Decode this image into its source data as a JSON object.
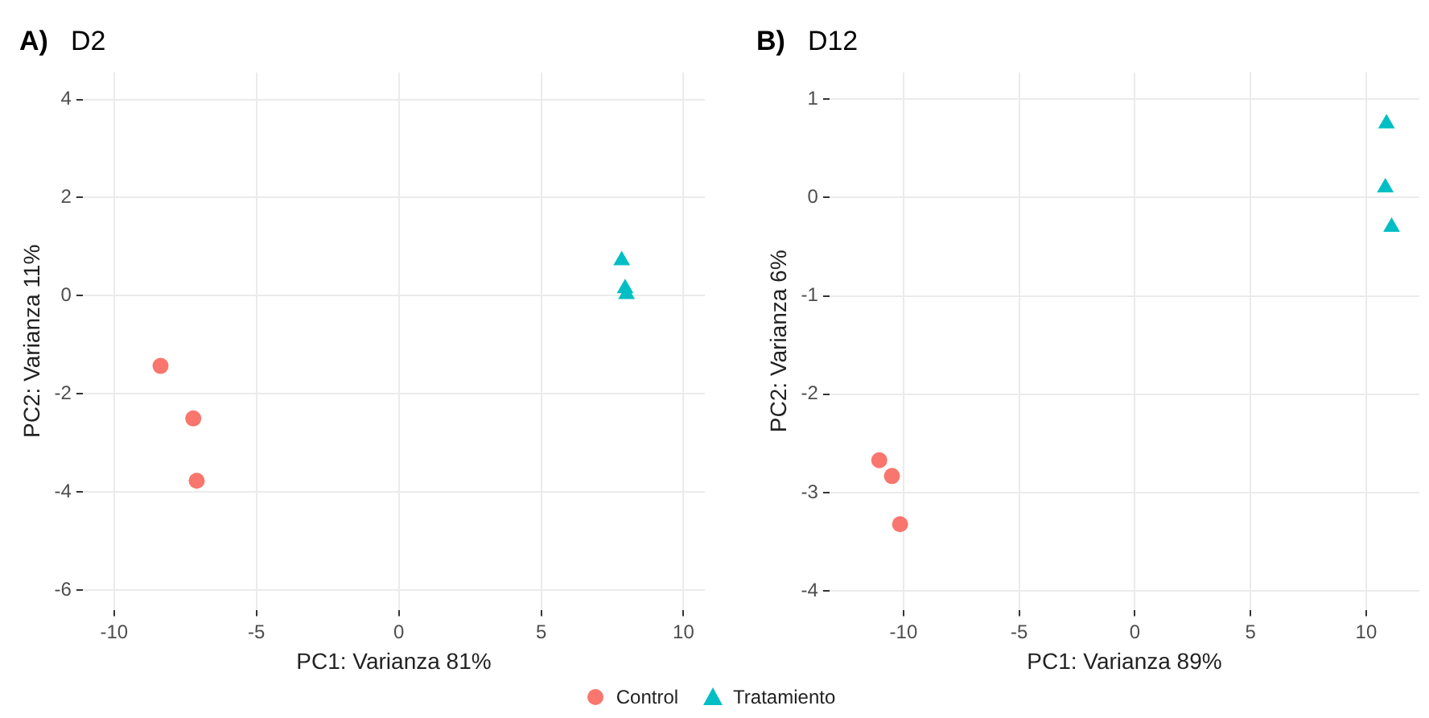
{
  "chart_data": [
    {
      "type": "scatter",
      "title": "D2",
      "annotations": [
        "A)"
      ],
      "xlabel": "PC1: Varianza 81%",
      "ylabel": "PC2: Varianza 11%",
      "xlim": [
        -11.1,
        10.75
      ],
      "ylim": [
        -6.4,
        4.55
      ],
      "xticks": [
        -10,
        -5,
        0,
        5,
        10
      ],
      "yticks": [
        -6,
        -4,
        -2,
        0,
        2,
        4
      ],
      "grid": true,
      "legend": "bottom",
      "series": [
        {
          "name": "Control",
          "color": "#f8766d",
          "marker": "circle",
          "x": [
            -8.37,
            -7.22,
            -7.1
          ],
          "values": [
            -1.43,
            -2.5,
            -3.77
          ]
        },
        {
          "name": "Tratamiento",
          "color": "#00bfc4",
          "marker": "triangle",
          "x": [
            7.83,
            7.95,
            8.0
          ],
          "values": [
            0.72,
            0.15,
            0.03
          ]
        }
      ]
    },
    {
      "type": "scatter",
      "title": "D12",
      "annotations": [
        "B)"
      ],
      "xlabel": "PC1: Varianza 89%",
      "ylabel": "PC2: Varianza 6%",
      "xlim": [
        -13.2,
        12.3
      ],
      "ylim": [
        -4.19,
        1.27
      ],
      "xticks": [
        -10,
        -5,
        0,
        5,
        10
      ],
      "yticks": [
        -4,
        -3,
        -2,
        -1,
        0,
        1
      ],
      "grid": true,
      "series": [
        {
          "color": "#f8766d",
          "marker": "circle",
          "x": [
            -11.05,
            -10.5,
            -10.15
          ],
          "values": [
            -2.67,
            -2.83,
            -3.32
          ]
        },
        {
          "color": "#00bfc4",
          "marker": "triangle",
          "x": [
            10.88,
            10.83,
            11.1
          ],
          "values": [
            0.75,
            0.1,
            -0.3
          ]
        }
      ]
    }
  ]
}
